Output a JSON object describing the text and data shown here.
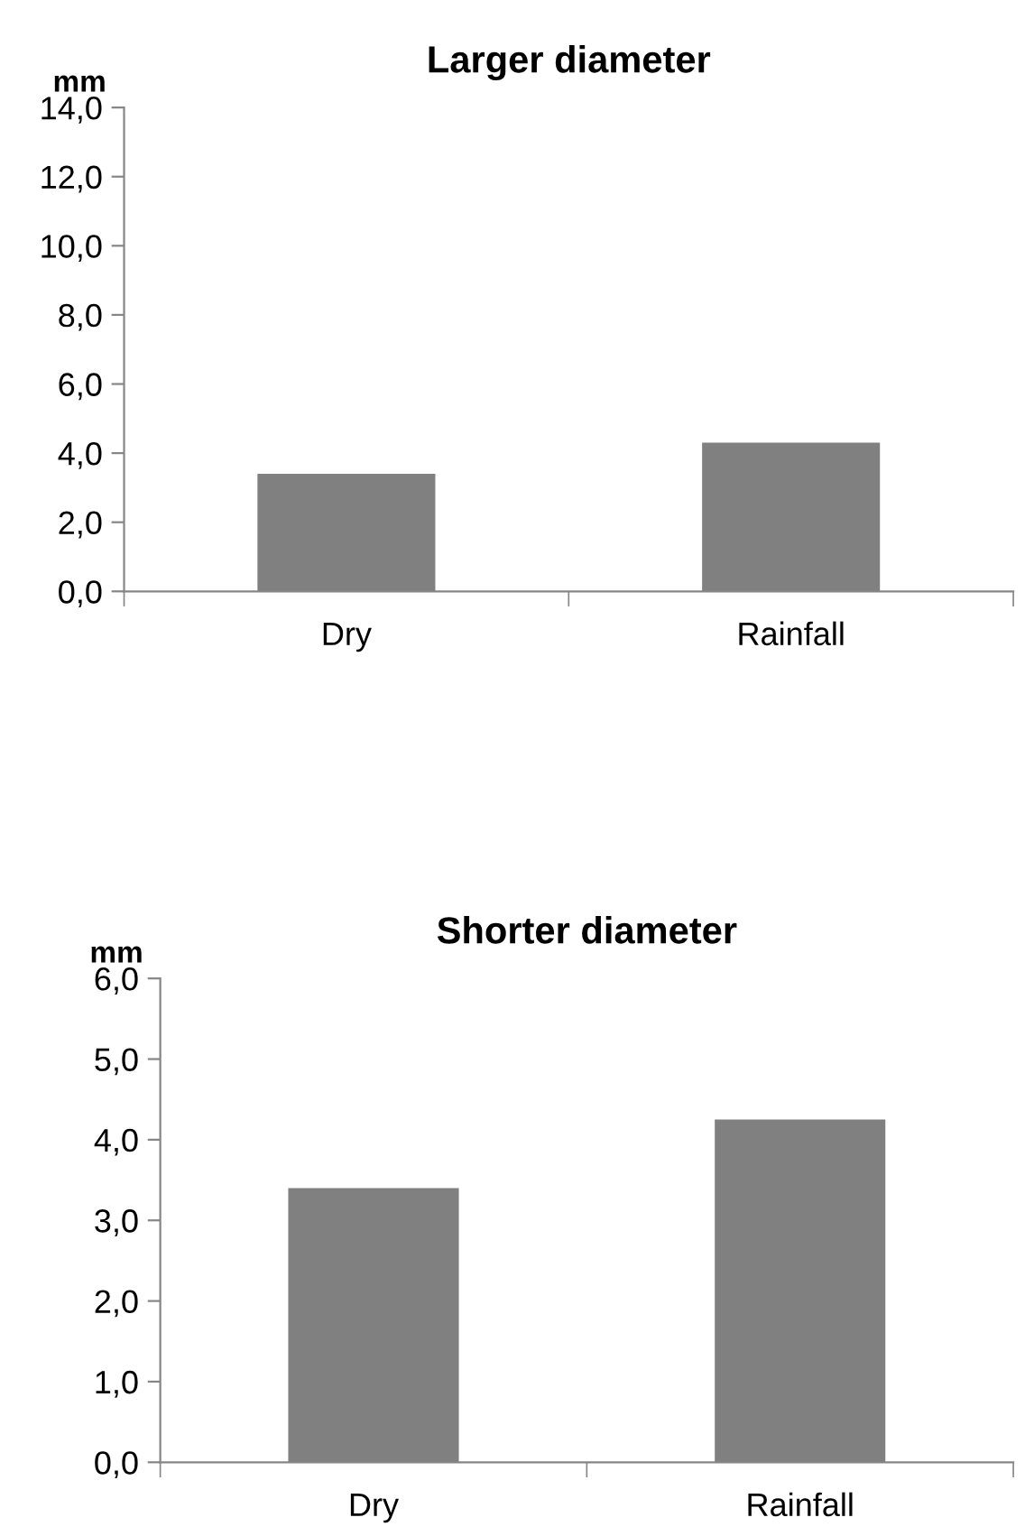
{
  "chart_data": [
    {
      "type": "bar",
      "title": "Larger diameter",
      "ylabel": "mm",
      "categories": [
        "Dry",
        "Rainfall"
      ],
      "values": [
        3.4,
        4.3
      ],
      "color": "#808080",
      "ylim": [
        0,
        14
      ],
      "yticks": [
        {
          "value": 0,
          "label": "0,0"
        },
        {
          "value": 2,
          "label": "2,0"
        },
        {
          "value": 4,
          "label": "4,0"
        },
        {
          "value": 6,
          "label": "6,0"
        },
        {
          "value": 8,
          "label": "8,0"
        },
        {
          "value": 10,
          "label": "10,0"
        },
        {
          "value": 12,
          "label": "12,0"
        },
        {
          "value": 14,
          "label": "14,0"
        }
      ],
      "grid": false,
      "legend": false
    },
    {
      "type": "bar",
      "title": "Shorter diameter",
      "ylabel": "mm",
      "categories": [
        "Dry",
        "Rainfall"
      ],
      "values": [
        3.4,
        4.25
      ],
      "color": "#808080",
      "ylim": [
        0,
        6
      ],
      "yticks": [
        {
          "value": 0,
          "label": "0,0"
        },
        {
          "value": 1,
          "label": "1,0"
        },
        {
          "value": 2,
          "label": "2,0"
        },
        {
          "value": 3,
          "label": "3,0"
        },
        {
          "value": 4,
          "label": "4,0"
        },
        {
          "value": 5,
          "label": "5,0"
        },
        {
          "value": 6,
          "label": "6,0"
        }
      ],
      "grid": false,
      "legend": false
    }
  ]
}
